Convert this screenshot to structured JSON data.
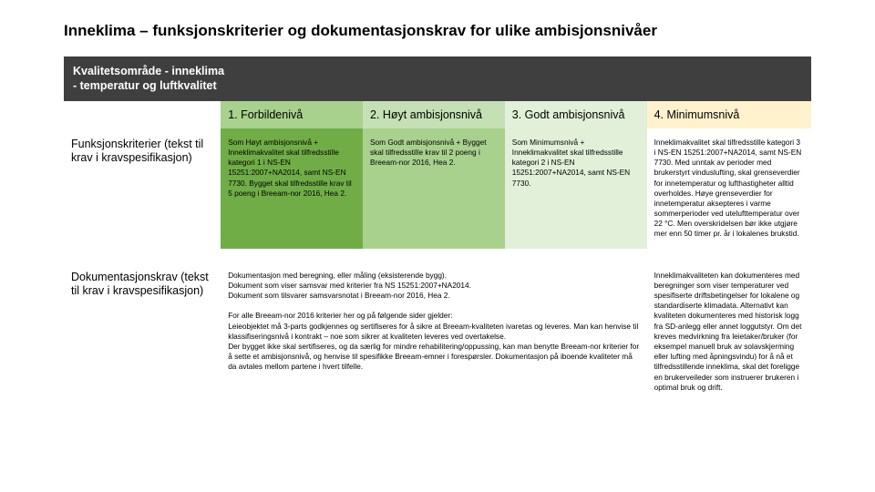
{
  "title": "Inneklima – funksjonskriterier og dokumentasjonskrav for ulike ambisjonsnivåer",
  "banner": {
    "line1": "Kvalitetsområde - inneklima",
    "line2": "- temperatur og luftkvalitet"
  },
  "colors": {
    "banner_bg": "#3f3f3f",
    "banner_text": "#ffffff",
    "level1_bg": "#a9d18e",
    "level2_bg": "#c5e0b4",
    "level3_bg": "#e2f0d9",
    "level4_bg": "#fff2cc",
    "row1_level1_bg": "#70ad47",
    "row1_level2_bg": "#a9d18e",
    "row1_level3_bg": "#e2f0d9",
    "row1_level4_bg": "#ffffff",
    "page_bg": "#ffffff"
  },
  "levels": {
    "l1": "1. Forbildenivå",
    "l2": "2. Høyt ambisjonsnivå",
    "l3": "3. Godt ambisjonsnivå",
    "l4": "4. Minimumsnivå"
  },
  "rows": [
    {
      "label": "Funksjonskriterier (tekst til krav i kravspesifikasjon)",
      "c1": "Som Høyt ambisjonsnivå + Inneklimakvalitet skal tilfredsstille kategori 1 i NS-EN 15251:2007+NA2014, samt NS-EN 7730. Bygget skal tilfredsstille krav til 5 poeng i Breeam-nor 2016, Hea 2.",
      "c2": "Som Godt ambisjonsnivå + Bygget skal tilfredsstille krav til 2 poeng i Breeam-nor 2016, Hea 2.",
      "c3": "Som Minimumsnivå + Inneklimakvalitet skal tilfredsstille kategori 2 i NS-EN 15251:2007+NA2014, samt NS-EN 7730.",
      "c4": "Inneklimakvalitet skal tilfredsstille kategori 3 i NS-EN 15251:2007+NA2014, samt NS-EN 7730. Med unntak av perioder med brukerstyrt vinduslufting, skal grenseverdier for innetemperatur og lufthastigheter alltid overholdes. Høye grenseverdier for innetemperatur aksepteres i varme sommerperioder ved utelufttemperatur over 22 °C. Men overskridelsen bør ikke utgjøre mer enn 50 timer pr. år i lokalenes brukstid."
    },
    {
      "label": "Dokumentasjonskrav (tekst til krav i kravspesifikasjon)",
      "c123": "Dokumentasjon med beregning, eller måling (eksisterende bygg).\nDokument som viser samsvar med kriterier fra NS 15251:2007+NA2014.\nDokument som tilsvarer samsvarsnotat i Breeam-nor 2016, Hea 2.\n\nFor alle Breeam-nor 2016 kriterier her og på følgende sider gjelder:\nLeieobjektet må 3-parts godkjennes og sertifiseres for å sikre at Breeam-kvaliteten ivaretas og leveres. Man kan henvise til klassifiseringsnivå i kontrakt – noe som sikrer at kvaliteten leveres ved overtakelse.\nDer bygget ikke skal sertifiseres, og da særlig for mindre rehabilitering/oppussing, kan man benytte Breeam-nor kriterier for å sette et ambisjonsnivå, og henvise til spesifikke Breeam-emner i forespørsler. Dokumentasjon på iboende kvaliteter må da avtales mellom partene i hvert tilfelle.",
      "c4": "Inneklimakvaliteten kan dokumenteres med beregninger som viser temperaturer ved spesifiserte driftsbetingelser for lokalene og standardiserte klimadata. Alternativt kan kvaliteten dokumenteres med historisk logg fra SD-anlegg eller annet loggutstyr. Om det kreves medvirkning fra leietaker/bruker (for eksempel manuell bruk av solavskjerming eller lufting med åpningsvindu) for å nå et tilfredsstillende inneklima, skal det foreligge en brukerveileder som instruerer brukeren i optimal bruk og drift."
    }
  ]
}
